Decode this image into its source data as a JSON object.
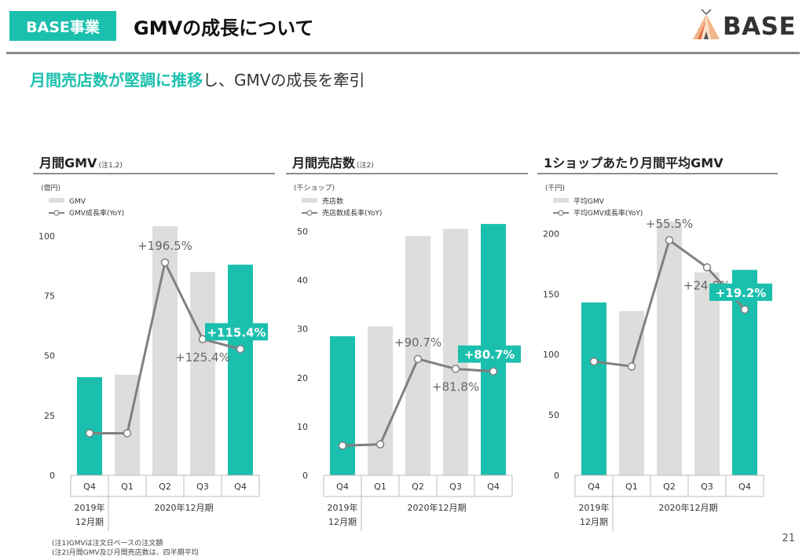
{
  "header": {
    "badge": "BASE事業",
    "title": "GMVの成長について",
    "logo_text": "BASE"
  },
  "subtitle": {
    "highlight_1": "月間売店数が堅調に推移",
    "normal_1": "し、",
    "normal_2": "GMVの成長を牽引"
  },
  "colors": {
    "accent": "#1bbfad",
    "bar_gray": "#dddddd",
    "line": "#808080"
  },
  "chart_data": [
    {
      "id": "gmv",
      "type": "bar",
      "title": "月間GMV",
      "title_note": "(注1,2)",
      "unit_label": "(億円)",
      "legend_bar": "GMV",
      "legend_line": "GMV成長率(YoY)",
      "categories": [
        "Q4",
        "Q1",
        "Q2",
        "Q3",
        "Q4"
      ],
      "fiscal_labels": {
        "first_line1": "2019年",
        "first_line2": "12月期",
        "rest": "2020年12月期"
      },
      "values": [
        41,
        42,
        104,
        85,
        88
      ],
      "highlight": [
        true,
        false,
        false,
        false,
        true
      ],
      "yticks": [
        0,
        25,
        50,
        75,
        100
      ],
      "ylim": [
        0,
        106
      ],
      "growth_series": {
        "name": "GMV成長率(YoY)",
        "values": [
          0.17,
          0.17,
          0.86,
          0.55,
          0.51
        ],
        "labels": [
          "",
          "",
          "+196.5%",
          "+125.4%",
          "+115.4%"
        ]
      }
    },
    {
      "id": "shops",
      "type": "bar",
      "title": "月間売店数",
      "title_note": "(注2)",
      "unit_label": "(千ショップ)",
      "legend_bar": "売店数",
      "legend_line": "売店数成長率(YoY)",
      "categories": [
        "Q4",
        "Q1",
        "Q2",
        "Q3",
        "Q4"
      ],
      "fiscal_labels": {
        "first_line1": "2019年",
        "first_line2": "12月期",
        "rest": "2020年12月期"
      },
      "values": [
        28.5,
        30.5,
        49,
        50.5,
        51.5
      ],
      "highlight": [
        true,
        false,
        false,
        false,
        true
      ],
      "yticks": [
        0,
        10,
        20,
        30,
        40,
        50
      ],
      "ylim": [
        0,
        52
      ],
      "growth_series": {
        "name": "売店数成長率(YoY)",
        "values": [
          0.12,
          0.125,
          0.47,
          0.43,
          0.42
        ],
        "labels": [
          "",
          "",
          "+90.7%",
          "+81.8%",
          "+80.7%"
        ]
      }
    },
    {
      "id": "avg",
      "type": "bar",
      "title": "1ショップあたり月間平均GMV",
      "title_note": "",
      "unit_label": "(千円)",
      "legend_bar": "平均GMV",
      "legend_line": "平均GMV成長率(YoY)",
      "categories": [
        "Q4",
        "Q1",
        "Q2",
        "Q3",
        "Q4"
      ],
      "fiscal_labels": {
        "first_line1": "2019年",
        "first_line2": "12月期",
        "rest": "2020年12月期"
      },
      "values": [
        143,
        136,
        210,
        168,
        170
      ],
      "highlight": [
        true,
        false,
        false,
        false,
        true
      ],
      "yticks": [
        0,
        50,
        100,
        150,
        200
      ],
      "ylim": [
        0,
        210
      ],
      "growth_series": {
        "name": "平均GMV成長率(YoY)",
        "values": [
          0.46,
          0.44,
          0.95,
          0.84,
          0.67
        ],
        "labels": [
          "",
          "",
          "+55.5%",
          "+24.0%",
          "+19.2%"
        ]
      }
    }
  ],
  "footnotes": [
    "(注1)GMVは注文日ベースの注文額",
    "(注2)月間GMV及び月間売店数は、四半期平均"
  ],
  "page_number": "21"
}
